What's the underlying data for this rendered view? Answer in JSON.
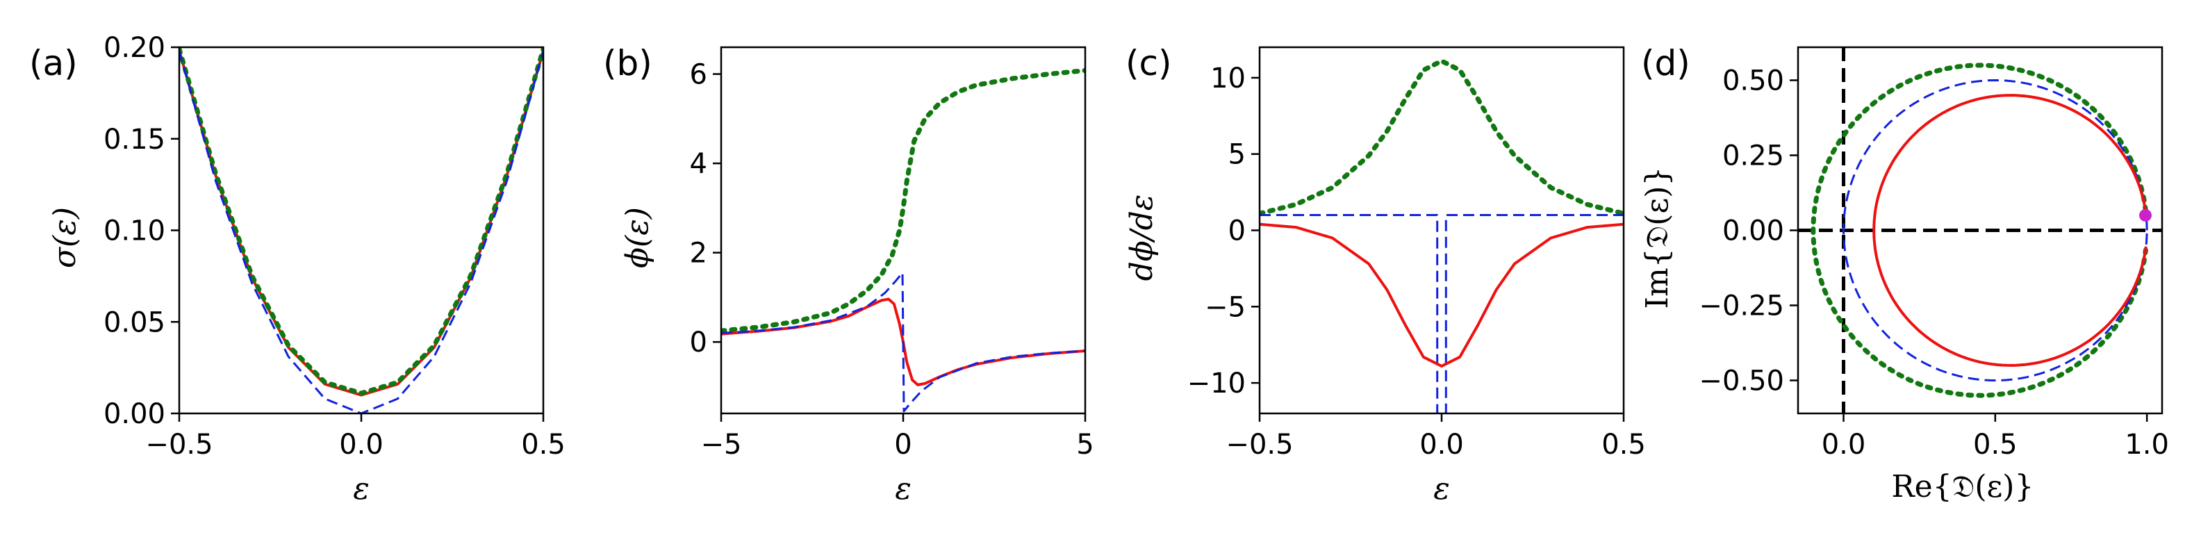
{
  "colors": {
    "red": "#ee1111",
    "blue": "#1122dd",
    "green": "#117711",
    "magenta": "#cc22cc",
    "black": "#000000"
  },
  "chart_data": [
    {
      "type": "line",
      "panel_label": "(a)",
      "xlabel": "ε",
      "ylabel": "σ(ε)",
      "xlim": [
        -0.5,
        0.5
      ],
      "ylim": [
        0.0,
        0.2
      ],
      "xticks": [
        -0.5,
        0.0,
        0.5
      ],
      "xtick_labels": [
        "−0.5",
        "0.0",
        "0.5"
      ],
      "yticks": [
        0.0,
        0.05,
        0.1,
        0.15,
        0.2
      ],
      "ytick_labels": [
        "0.00",
        "0.05",
        "0.10",
        "0.15",
        "0.20"
      ],
      "grid": false,
      "series": [
        {
          "color": "red",
          "style": "solid",
          "width": 4,
          "x": [
            -0.5,
            -0.4,
            -0.3,
            -0.2,
            -0.1,
            0.0,
            0.1,
            0.2,
            0.3,
            0.4,
            0.5
          ],
          "y": [
            0.198,
            0.13,
            0.074,
            0.036,
            0.016,
            0.01,
            0.016,
            0.036,
            0.074,
            0.13,
            0.198
          ]
        },
        {
          "color": "green",
          "style": "dotted",
          "width": 7,
          "x": [
            -0.5,
            -0.4,
            -0.3,
            -0.2,
            -0.1,
            0.0,
            0.1,
            0.2,
            0.3,
            0.4,
            0.5
          ],
          "y": [
            0.199,
            0.131,
            0.075,
            0.037,
            0.017,
            0.011,
            0.017,
            0.037,
            0.075,
            0.131,
            0.199
          ]
        },
        {
          "color": "blue",
          "style": "dashed",
          "width": 3,
          "x": [
            -0.5,
            -0.4,
            -0.3,
            -0.2,
            -0.1,
            0.0,
            0.1,
            0.2,
            0.3,
            0.4,
            0.5
          ],
          "y": [
            0.198,
            0.127,
            0.071,
            0.031,
            0.008,
            0.0,
            0.008,
            0.031,
            0.071,
            0.127,
            0.198
          ]
        }
      ]
    },
    {
      "type": "line",
      "panel_label": "(b)",
      "xlabel": "ε",
      "ylabel": "ϕ(ε)",
      "xlim": [
        -5,
        5
      ],
      "ylim": [
        -1.6,
        6.6
      ],
      "xticks": [
        -5,
        0,
        5
      ],
      "xtick_labels": [
        "−5",
        "0",
        "5"
      ],
      "yticks": [
        0,
        2,
        4,
        6
      ],
      "ytick_labels": [
        "0",
        "2",
        "4",
        "6"
      ],
      "grid": false,
      "series": [
        {
          "color": "green",
          "style": "dotted",
          "width": 7,
          "x": [
            -5,
            -4,
            -3,
            -2,
            -1.5,
            -1,
            -0.6,
            -0.3,
            -0.1,
            0,
            0.1,
            0.3,
            0.6,
            1,
            1.5,
            2,
            3,
            4,
            5
          ],
          "y": [
            0.25,
            0.33,
            0.45,
            0.65,
            0.85,
            1.15,
            1.5,
            1.95,
            2.5,
            3.0,
            3.6,
            4.5,
            5.0,
            5.35,
            5.6,
            5.75,
            5.9,
            6.0,
            6.08
          ]
        },
        {
          "color": "red",
          "style": "solid",
          "width": 4,
          "x": [
            -5,
            -4,
            -3,
            -2,
            -1.5,
            -1,
            -0.6,
            -0.4,
            -0.25,
            -0.1,
            0,
            0.1,
            0.25,
            0.4,
            0.6,
            1,
            1.5,
            2,
            3,
            4,
            5
          ],
          "y": [
            0.18,
            0.24,
            0.32,
            0.46,
            0.58,
            0.78,
            0.93,
            0.96,
            0.85,
            0.4,
            0.0,
            -0.45,
            -0.85,
            -0.96,
            -0.93,
            -0.78,
            -0.62,
            -0.5,
            -0.35,
            -0.26,
            -0.2
          ]
        },
        {
          "color": "blue",
          "style": "dashed",
          "width": 3,
          "x": [
            -5,
            -4,
            -3,
            -2,
            -1,
            -0.5,
            -0.2,
            -0.05,
            -0.02,
            0.02,
            0.05,
            0.2,
            0.5,
            1,
            2,
            3,
            4,
            5
          ],
          "y": [
            0.2,
            0.25,
            0.33,
            0.48,
            0.79,
            1.1,
            1.37,
            1.52,
            1.55,
            -1.55,
            -1.52,
            -1.37,
            -1.1,
            -0.79,
            -0.48,
            -0.33,
            -0.25,
            -0.2
          ]
        }
      ]
    },
    {
      "type": "line",
      "panel_label": "(c)",
      "xlabel": "ε",
      "ylabel": "dϕ/dε",
      "xlim": [
        -0.5,
        0.5
      ],
      "ylim": [
        -12,
        12
      ],
      "xticks": [
        -0.5,
        0.0,
        0.5
      ],
      "xtick_labels": [
        "−0.5",
        "0.0",
        "0.5"
      ],
      "yticks": [
        -10,
        -5,
        0,
        5,
        10
      ],
      "ytick_labels": [
        "−10",
        "−5",
        "0",
        "5",
        "10"
      ],
      "grid": false,
      "series": [
        {
          "color": "green",
          "style": "dotted",
          "width": 7,
          "x": [
            -0.5,
            -0.4,
            -0.3,
            -0.2,
            -0.15,
            -0.1,
            -0.05,
            0.0,
            0.05,
            0.1,
            0.15,
            0.2,
            0.3,
            0.4,
            0.5
          ],
          "y": [
            1.1,
            1.7,
            2.8,
            4.9,
            6.5,
            8.6,
            10.5,
            11.1,
            10.5,
            8.6,
            6.5,
            4.9,
            2.8,
            1.7,
            1.1
          ]
        },
        {
          "color": "blue",
          "style": "dashed",
          "width": 3,
          "x": [
            -0.5,
            -0.02,
            -0.012,
            -0.012,
            0.012,
            0.012,
            0.02,
            0.5
          ],
          "y": [
            1.0,
            1.0,
            1.0,
            -12,
            -12,
            1.0,
            1.0,
            1.0
          ]
        },
        {
          "color": "red",
          "style": "solid",
          "width": 4,
          "x": [
            -0.5,
            -0.4,
            -0.3,
            -0.2,
            -0.15,
            -0.1,
            -0.05,
            0.0,
            0.05,
            0.1,
            0.15,
            0.2,
            0.3,
            0.4,
            0.5
          ],
          "y": [
            0.4,
            0.2,
            -0.5,
            -2.2,
            -3.9,
            -6.2,
            -8.3,
            -8.9,
            -8.3,
            -6.2,
            -3.9,
            -2.2,
            -0.5,
            0.2,
            0.4
          ]
        }
      ]
    },
    {
      "type": "line",
      "panel_label": "(d)",
      "xlabel": "Re{𝔇(ε)}",
      "ylabel": "Im{𝔇(ε)}",
      "xlim": [
        -0.15,
        1.05
      ],
      "ylim": [
        -0.61,
        0.61
      ],
      "xticks": [
        0.0,
        0.5,
        1.0
      ],
      "xtick_labels": [
        "0.0",
        "0.5",
        "1.0"
      ],
      "yticks": [
        -0.5,
        -0.25,
        0.0,
        0.25,
        0.5
      ],
      "ytick_labels": [
        "−0.50",
        "−0.25",
        "0.00",
        "0.25",
        "0.50"
      ],
      "grid": false,
      "reference_lines": {
        "x": 0.0,
        "y": 0.0,
        "color": "black",
        "style": "dashed"
      },
      "circles": [
        {
          "color": "green",
          "style": "dotted",
          "width": 7,
          "center": [
            0.45,
            0.0
          ],
          "radius": 0.55,
          "gap_at_right": true
        },
        {
          "color": "blue",
          "style": "dashed",
          "width": 3,
          "center": [
            0.5,
            0.0
          ],
          "radius": 0.5,
          "gap_at_right": false
        },
        {
          "color": "red",
          "style": "solid",
          "width": 4,
          "center": [
            0.55,
            0.0
          ],
          "radius": 0.45,
          "gap_at_right": true
        }
      ],
      "marker": {
        "color": "magenta",
        "x": 0.995,
        "y": 0.05
      }
    }
  ]
}
